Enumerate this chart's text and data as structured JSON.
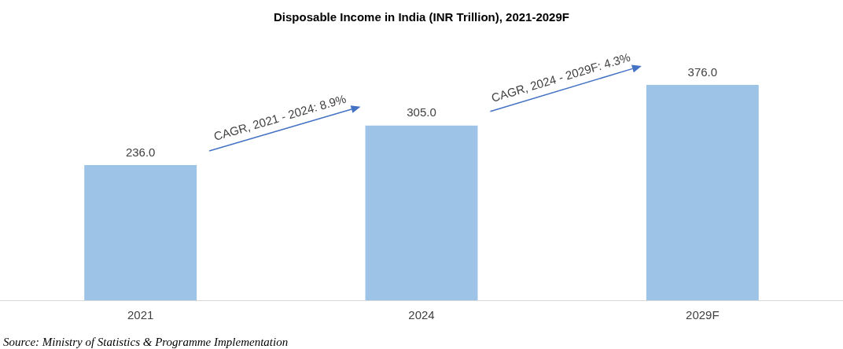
{
  "chart_data": {
    "type": "bar",
    "title": "Disposable Income in India (INR Trillion), 2021-2029F",
    "categories": [
      "2021",
      "2024",
      "2029F"
    ],
    "values": [
      236.0,
      305.0,
      376.0
    ],
    "color": "#9dc3e6",
    "value_labels": [
      "236.0",
      "305.0",
      "376.0"
    ],
    "annotations": [
      "CAGR, 2021 - 2024: 8.9%",
      "CAGR, 2024 - 2029F: 4.3%",
      "Source: Ministry of Statistics & Programme Implementation"
    ]
  }
}
